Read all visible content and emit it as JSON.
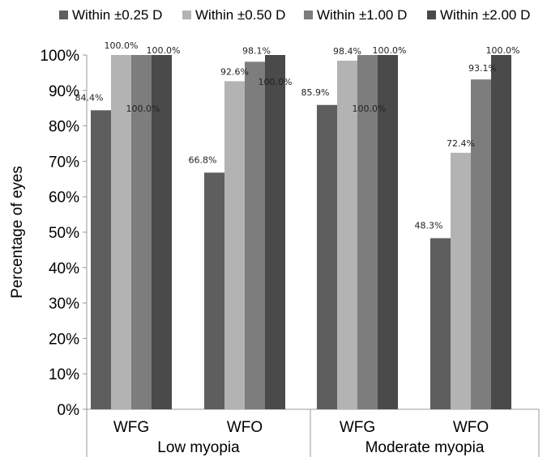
{
  "chart_data": {
    "type": "bar",
    "title": "",
    "xlabel": "",
    "ylabel": "Percentage of eyes",
    "ylim": [
      0,
      100
    ],
    "y_tick_labels": [
      "0%",
      "10%",
      "20%",
      "30%",
      "40%",
      "50%",
      "60%",
      "70%",
      "80%",
      "90%",
      "100%"
    ],
    "groups": [
      {
        "label": "Low myopia",
        "categories": [
          "WFG",
          "WFO"
        ]
      },
      {
        "label": "Moderate myopia",
        "categories": [
          "WFG",
          "WFO"
        ]
      }
    ],
    "categories": [
      "WFG",
      "WFO",
      "WFG",
      "WFO"
    ],
    "series": [
      {
        "name": "Within ±0.25 D",
        "color": "#5e5e5e",
        "values": [
          84.4,
          66.8,
          85.9,
          48.3
        ],
        "labels": [
          "84.4%",
          "66.8%",
          "85.9%",
          "48.3%"
        ]
      },
      {
        "name": "Within ±0.50 D",
        "color": "#b3b3b3",
        "values": [
          100.0,
          92.6,
          98.4,
          72.4
        ],
        "labels": [
          "100.0%",
          "92.6%",
          "98.4%",
          "72.4%"
        ]
      },
      {
        "name": "Within ±1.00 D",
        "color": "#7d7d7d",
        "values": [
          100.0,
          98.1,
          100.0,
          93.1
        ],
        "labels": [
          "100.0%",
          "98.1%",
          "100.0%",
          "93.1%"
        ]
      },
      {
        "name": "Within ±2.00 D",
        "color": "#4a4a4a",
        "values": [
          100.0,
          100.0,
          100.0,
          100.0
        ],
        "labels": [
          "100.0%",
          "100.0%",
          "100.0%",
          "100.0%"
        ]
      }
    ],
    "legend": "top",
    "grid": false
  }
}
